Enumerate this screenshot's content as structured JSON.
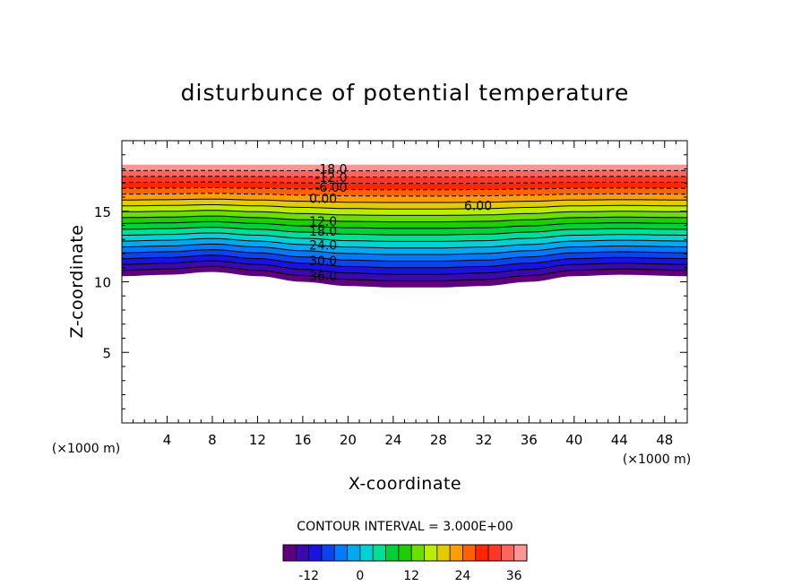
{
  "chart_data": {
    "type": "contour",
    "title": "disturbunce of potential temperature",
    "xlabel": "X-coordinate",
    "ylabel": "Z-coordinate",
    "x_unit": "(×1000 m)",
    "y_unit": "(×1000 m)",
    "xlim": [
      0,
      50
    ],
    "ylim": [
      0,
      20
    ],
    "x_ticks": [
      4,
      8,
      12,
      16,
      20,
      24,
      28,
      32,
      36,
      40,
      44,
      48
    ],
    "y_ticks": [
      5,
      10,
      15
    ],
    "contour_interval_text": "CONTOUR INTERVAL = 3.000E+00",
    "level_min": -18,
    "level_max": 39,
    "level_step": 3,
    "field_top_z": 18.3,
    "base_profile": [
      {
        "x": 0,
        "z": 10.4
      },
      {
        "x": 4,
        "z": 10.5
      },
      {
        "x": 8,
        "z": 10.7
      },
      {
        "x": 12,
        "z": 10.4
      },
      {
        "x": 16,
        "z": 10.0
      },
      {
        "x": 20,
        "z": 9.7
      },
      {
        "x": 24,
        "z": 9.6
      },
      {
        "x": 28,
        "z": 9.6
      },
      {
        "x": 32,
        "z": 9.7
      },
      {
        "x": 36,
        "z": 10.0
      },
      {
        "x": 40,
        "z": 10.4
      },
      {
        "x": 44,
        "z": 10.5
      },
      {
        "x": 50,
        "z": 10.4
      }
    ],
    "contour_labels": [
      {
        "text": "-18.0",
        "x": 18.5,
        "z": 18.0
      },
      {
        "text": "-12.0",
        "x": 18.5,
        "z": 17.4
      },
      {
        "text": "-6.00",
        "x": 18.5,
        "z": 16.7
      },
      {
        "text": "0.00",
        "x": 17.8,
        "z": 15.9
      },
      {
        "text": "6.00",
        "x": 31.5,
        "z": 15.4
      },
      {
        "text": "12.0",
        "x": 17.8,
        "z": 14.3
      },
      {
        "text": "18.0",
        "x": 17.8,
        "z": 13.6
      },
      {
        "text": "24.0",
        "x": 17.8,
        "z": 12.6
      },
      {
        "text": "30.0",
        "x": 17.8,
        "z": 11.5
      },
      {
        "text": "36.0",
        "x": 17.8,
        "z": 10.4
      }
    ],
    "colorbar_ticks": [
      -12,
      0,
      12,
      24,
      36
    ]
  }
}
